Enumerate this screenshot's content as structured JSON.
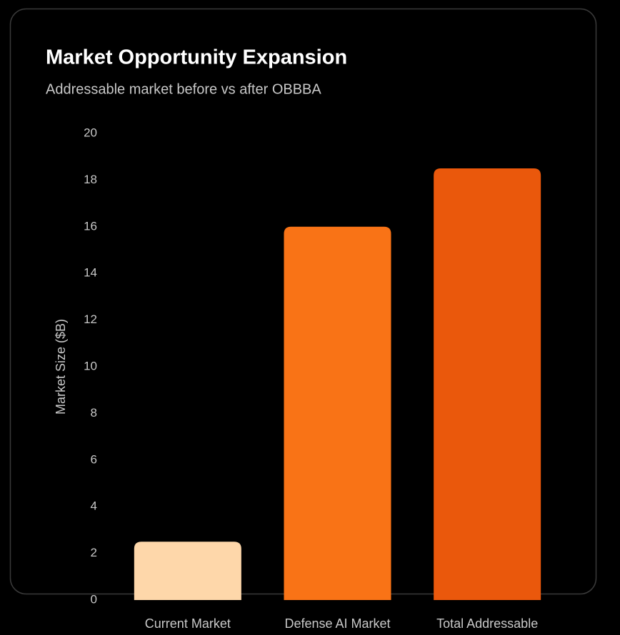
{
  "chart_data": {
    "type": "bar",
    "title": "Market Opportunity Expansion",
    "subtitle": "Addressable market before vs after OBBBA",
    "y_label": "Market Size ($B)",
    "categories": [
      "Current Market",
      "Defense AI Market",
      "Total Addressable"
    ],
    "values": [
      2.5,
      16,
      18.5
    ],
    "colors": [
      "#fed7aa",
      "#f97316",
      "#ea580c"
    ],
    "ylim": [
      0,
      20
    ],
    "yticks": [
      0,
      2,
      4,
      6,
      8,
      10,
      12,
      14,
      16,
      18,
      20
    ],
    "grid": false
  }
}
